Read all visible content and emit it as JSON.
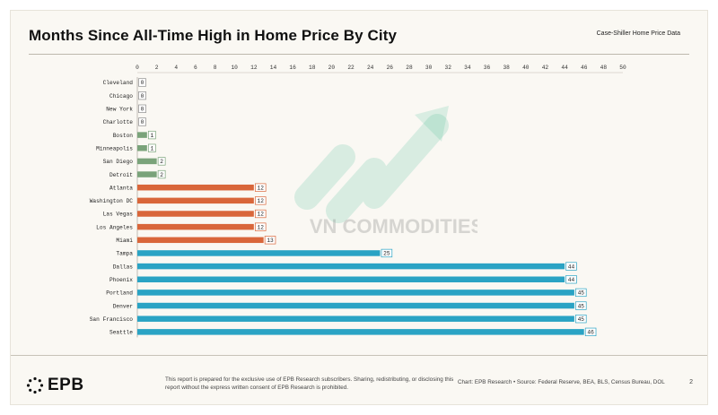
{
  "page": {
    "title": "Months Since All-Time High in Home Price By City",
    "subtitle": "Case-Shiller Home Price Data",
    "watermark_text": "VN COMMODITIES",
    "footer": {
      "logo_text": "EPB",
      "disclaimer": "This report is prepared for the exclusive use of EPB Research subscribers. Sharing, redistributing, or disclosing this report without the express written consent of EPB Research is prohibited.",
      "source": "Chart: EPB Research  •  Source: Federal Reserve, BEA, BLS, Census Bureau, DOL",
      "page_number": "2"
    }
  },
  "chart_data": {
    "type": "bar",
    "orientation": "horizontal",
    "title": "Months Since All-Time High in Home Price By City",
    "subtitle": "Case-Shiller Home Price Data",
    "xlabel": "",
    "ylabel": "",
    "xlim": [
      0,
      50
    ],
    "x_ticks": [
      0,
      2,
      4,
      6,
      8,
      10,
      12,
      14,
      16,
      18,
      20,
      22,
      24,
      26,
      28,
      30,
      32,
      34,
      36,
      38,
      40,
      42,
      44,
      46,
      48,
      50
    ],
    "x_axis_position": "top",
    "grid": false,
    "legend": "none",
    "colors": {
      "green": "#7aa37a",
      "orange": "#d9663a",
      "blue": "#2aa3c4"
    },
    "categories": [
      "Cleveland",
      "Chicago",
      "New York",
      "Charlotte",
      "Boston",
      "Minneapolis",
      "San Diego",
      "Detroit",
      "Atlanta",
      "Washington DC",
      "Las Vegas",
      "Los Angeles",
      "Miami",
      "Tampa",
      "Dallas",
      "Phoenix",
      "Portland",
      "Denver",
      "San Francisco",
      "Seattle"
    ],
    "values": [
      0,
      0,
      0,
      0,
      1,
      1,
      2,
      2,
      12,
      12,
      12,
      12,
      13,
      25,
      44,
      44,
      45,
      45,
      45,
      46
    ],
    "bar_colors": [
      "green",
      "green",
      "green",
      "green",
      "green",
      "green",
      "green",
      "green",
      "orange",
      "orange",
      "orange",
      "orange",
      "orange",
      "blue",
      "blue",
      "blue",
      "blue",
      "blue",
      "blue",
      "blue"
    ]
  }
}
